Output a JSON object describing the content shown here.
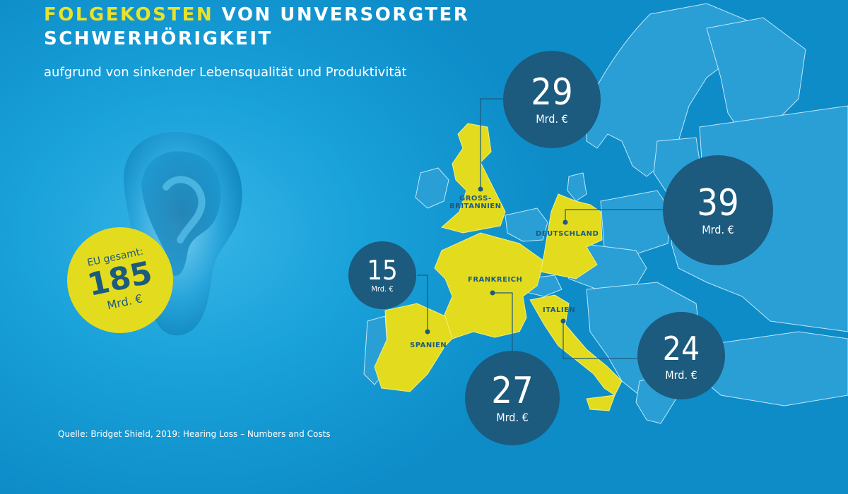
{
  "header": {
    "title_highlight": "FOLGEKOSTEN",
    "title_rest_line1": " VON UNVERSORGTER",
    "title_line2": "SCHWERHÖRIGKEIT",
    "subtitle": "aufgrund von sinkender Lebensqualität und Produktivität"
  },
  "total": {
    "label": "EU gesamt:",
    "value": "185",
    "unit": "Mrd. €"
  },
  "countries": [
    {
      "name": "GROSS-\nBRITANNIEN",
      "value": "29",
      "unit": "Mrd. €"
    },
    {
      "name": "DEUTSCHLAND",
      "value": "39",
      "unit": "Mrd. €"
    },
    {
      "name": "FRANKREICH",
      "value": "27",
      "unit": "Mrd. €"
    },
    {
      "name": "SPANIEN",
      "value": "15",
      "unit": "Mrd. €"
    },
    {
      "name": "ITALIEN",
      "value": "24",
      "unit": "Mrd. €"
    }
  ],
  "source": "Quelle: Bridget Shield, 2019: Hearing Loss – Numbers and Costs",
  "colors": {
    "background": "#17a0d8",
    "highlight_country": "#e3dc1e",
    "bubble": "#1c5a7e",
    "title_accent": "#e8e22a"
  }
}
